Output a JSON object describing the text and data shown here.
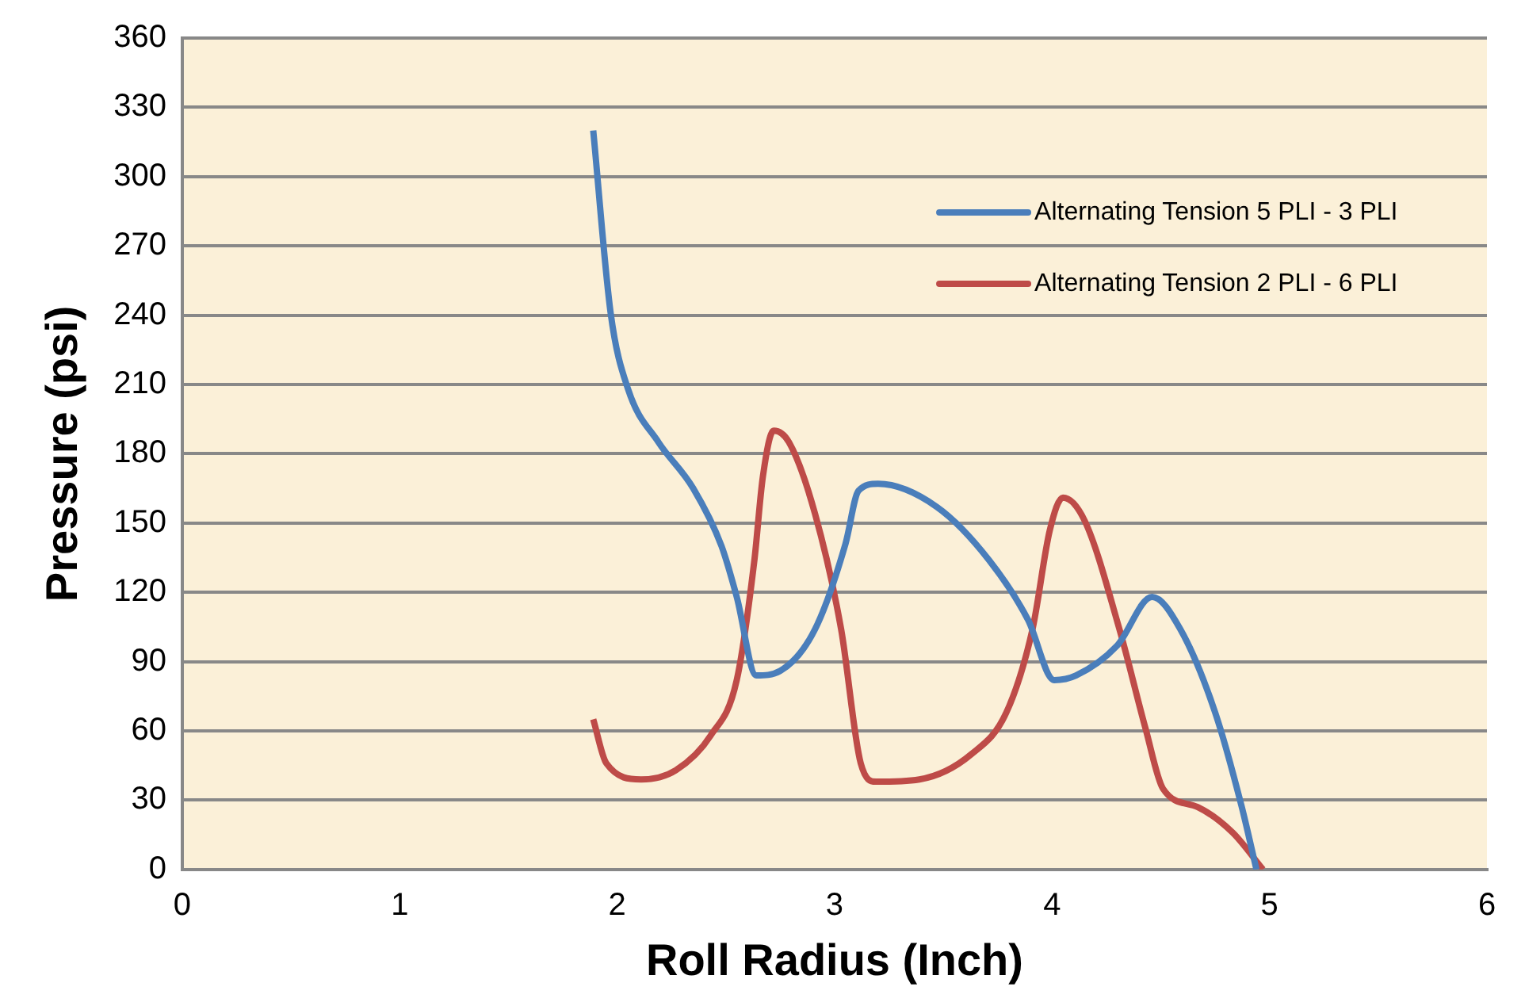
{
  "chart_data": {
    "type": "line",
    "xlabel": "Roll Radius (Inch)",
    "ylabel": "Pressure (psi)",
    "xlim": [
      0,
      6
    ],
    "xticks": [
      0,
      1,
      2,
      3,
      4,
      5,
      6
    ],
    "ylim": [
      0,
      360
    ],
    "yticks": [
      0,
      30,
      60,
      90,
      120,
      150,
      180,
      210,
      240,
      270,
      300,
      330,
      360
    ],
    "grid": "y",
    "legend": "top right",
    "marker": "none",
    "line_style": "solid",
    "series": [
      {
        "name": "Alternating Tension 5 PLI - 3 PLI",
        "color": "#4a7ebb",
        "x": [
          1.89,
          1.97,
          2.05,
          2.19,
          2.35,
          2.48,
          2.55,
          2.64,
          2.75,
          2.91,
          3.05,
          3.11,
          3.2,
          3.47,
          3.71,
          3.89,
          4.01,
          4.11,
          4.3,
          4.46,
          4.59,
          4.75,
          4.87,
          4.94
        ],
        "values": [
          320,
          241,
          208,
          185,
          165,
          140,
          118,
          84,
          86,
          104,
          141,
          164,
          167,
          157,
          134,
          108,
          82,
          84,
          97,
          118,
          104,
          68,
          28,
          0
        ]
      },
      {
        "name": "Alternating Tension 2 PLI - 6 PLI",
        "color": "#be4b48",
        "x": [
          1.89,
          1.95,
          2.11,
          2.27,
          2.43,
          2.55,
          2.63,
          2.67,
          2.72,
          2.79,
          2.91,
          3.03,
          3.12,
          3.19,
          3.39,
          3.63,
          3.79,
          3.91,
          3.99,
          4.05,
          4.15,
          4.31,
          4.43,
          4.51,
          4.67,
          4.83,
          4.97
        ],
        "values": [
          65,
          46,
          39,
          43,
          58,
          82,
          133,
          170,
          190,
          185,
          154,
          104,
          46,
          38,
          39,
          50,
          68,
          104,
          147,
          161,
          151,
          104,
          61,
          35,
          27,
          16,
          0
        ]
      }
    ]
  }
}
